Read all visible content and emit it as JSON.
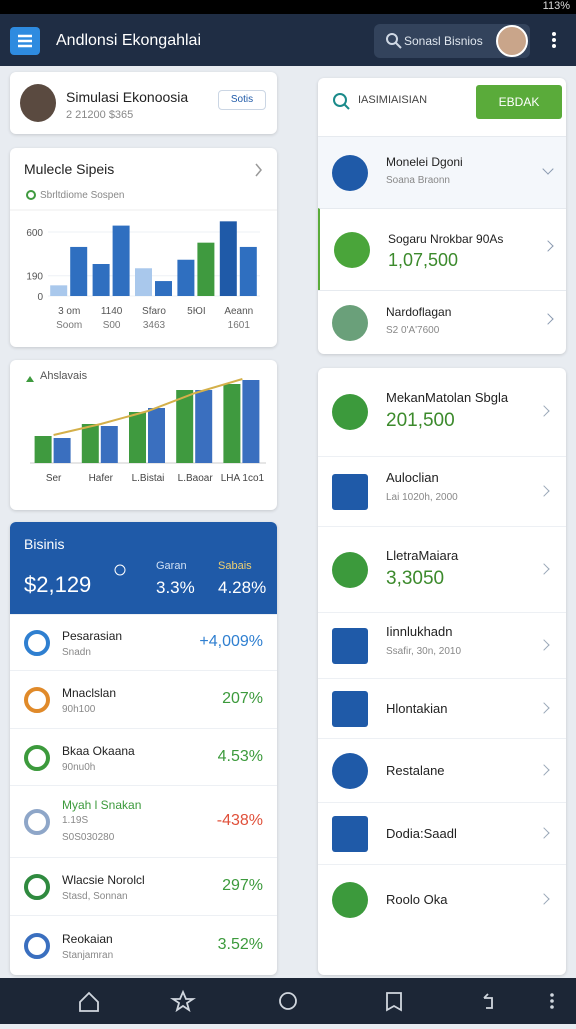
{
  "status_bar": {
    "battery": "113%"
  },
  "app_bar": {
    "title": "Andlonsi Ekongahlai",
    "search": "Sonasl Bisnios"
  },
  "profile": {
    "name": "Simulasi Ekonoosia",
    "detail": "2 21200 $365",
    "badge": "Sotis"
  },
  "bar_chart": {
    "type": "bar",
    "title": "Mulecle Sipeis",
    "subtitle": "Sbrltdiome Sospen",
    "ylim": [
      0,
      750
    ],
    "yticks": [
      0,
      190,
      600
    ],
    "categories": [
      {
        "label": "3 om",
        "sub": "Soom"
      },
      {
        "label": "1140",
        "sub": "S00"
      },
      {
        "label": "Sfaro",
        "sub": "3463"
      },
      {
        "label": "5ЮI"
      },
      {
        "label": "Aeann",
        "sub": "1601"
      }
    ],
    "values": [
      [
        100,
        460
      ],
      [
        300,
        660
      ],
      [
        260,
        140
      ],
      [
        340,
        500
      ],
      [
        700,
        460
      ]
    ],
    "colors": [
      [
        "#a9c8ec",
        "#2f6fc0"
      ],
      [
        "#2f6fc0",
        "#2f6fc0"
      ],
      [
        "#a9c8ec",
        "#2f6fc0"
      ],
      [
        "#2f6fc0",
        "#3f9a3f"
      ],
      [
        "#1f5aa8",
        "#2f6fc0"
      ]
    ]
  },
  "grouped_chart": {
    "type": "bar",
    "title": "Ahslavais",
    "ylim": [
      0,
      100
    ],
    "categories": [
      "Ser",
      "Hafer",
      "L.Bistai",
      "L.Baoar",
      "LHA 1co1"
    ],
    "series": [
      {
        "color": "#3f9a3f",
        "values": [
          27,
          39,
          51,
          73,
          79
        ]
      },
      {
        "color": "#3a6fbf",
        "values": [
          25,
          37,
          55,
          73,
          83
        ]
      }
    ],
    "line": {
      "color": "#d4b04a",
      "values": [
        28,
        39,
        52,
        70,
        84
      ]
    }
  },
  "business": {
    "title": "Bisinis",
    "total": "$2,129",
    "stats": [
      {
        "label": "Garan",
        "value": "3.3%"
      },
      {
        "label": "Sabais",
        "value": "4.28%"
      }
    ],
    "rows": [
      {
        "name": "Pesarasian",
        "sub": "Snadn",
        "change": "+4,009%",
        "color": "#2f7fd0",
        "icon": "#2f7fd0"
      },
      {
        "name": "Mnaclslan",
        "sub": "90h100",
        "change": "207%",
        "color": "#3c9a3c",
        "icon": "#e08a2a"
      },
      {
        "name": "Bkaa Okaana",
        "sub": "90nu0h",
        "change": "4.53%",
        "color": "#3c9a3c",
        "icon": "#3c9a3c"
      },
      {
        "name": "Myah l Snakan",
        "sub": "1.19S",
        "sub2": "S0S030280",
        "change": "-438%",
        "color": "#e0503a",
        "icon": "#8ea6c8"
      },
      {
        "name": "Wlacsie Norolcl",
        "sub": "Stasd, Sonnan",
        "change": "297%",
        "color": "#3c9a3c",
        "icon": "#2f8a3f"
      },
      {
        "name": "Reokaian",
        "sub": "Stanjamran",
        "change": "3.52%",
        "color": "#3c9a3c",
        "icon": "#3a6fbf"
      }
    ]
  },
  "right_panel": {
    "search": "IASIMIAISIAN",
    "button": "EBDAK",
    "items": [
      {
        "title": "Monelei Dgoni",
        "sub": "Soana Braonn",
        "icon": "#1f5aa8"
      },
      {
        "title": "Sogaru Nrokbar 90As",
        "value": "1,07,500",
        "icon": "#4aa53a"
      },
      {
        "title": "Nardoflagan",
        "sub": "S2 0'A'7600",
        "icon": "#6aa07a"
      }
    ]
  },
  "right_list": {
    "items": [
      {
        "title": "MekanMatolan Sbgla",
        "value": "201,500",
        "icon": "#3c9a3c"
      },
      {
        "title": "Auloclian",
        "sub": "Lai 1020h, 2000",
        "icon": "#1f5aa8"
      },
      {
        "title": "LletraMaiara",
        "value": "3,3050",
        "icon": "#3c9a3c"
      },
      {
        "title": "Iinnlukhadn",
        "sub": "Ssafir, 30n, 2010",
        "icon": "#1f5aa8"
      },
      {
        "title": "Hlontakian",
        "icon": "#1f5aa8"
      },
      {
        "title": "Restalane",
        "icon": "#1f5aa8"
      },
      {
        "title": "Dodia:Saadl",
        "icon": "#1f5aa8"
      },
      {
        "title": "Roolo Oka",
        "icon": "#3c9a3c"
      }
    ]
  }
}
